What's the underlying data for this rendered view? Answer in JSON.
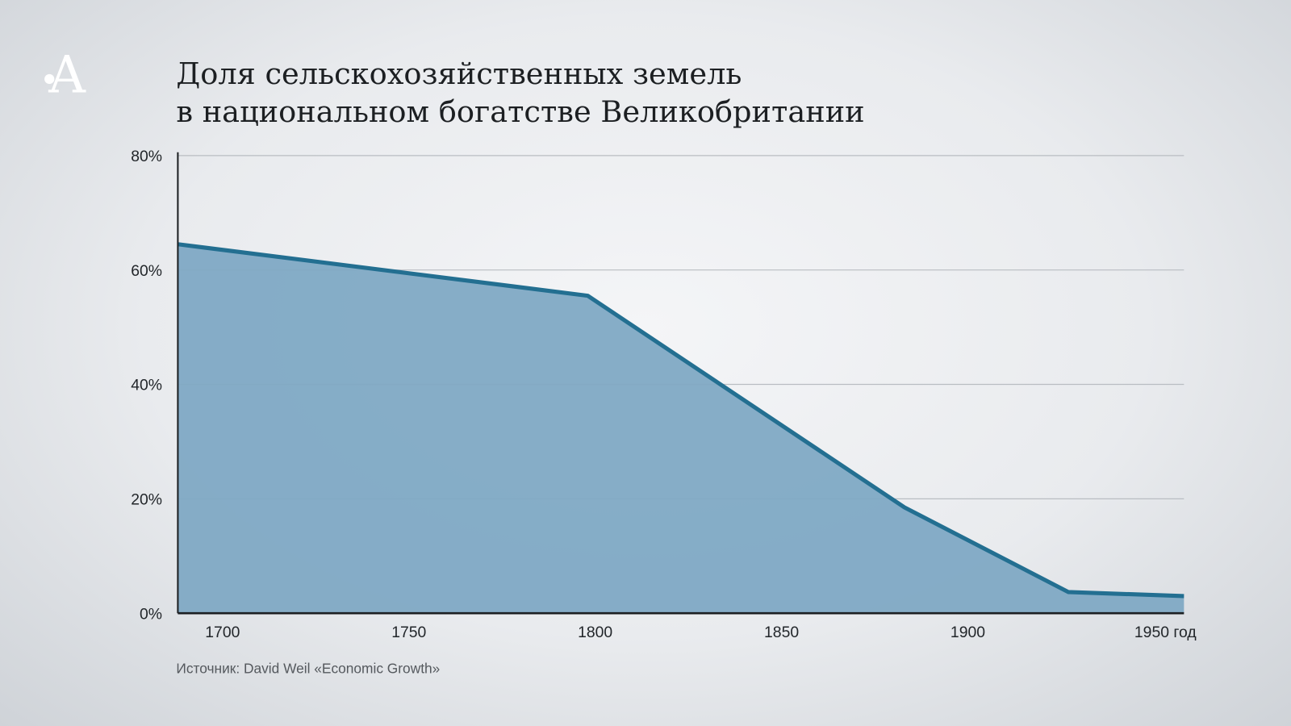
{
  "logo": "А",
  "chart_data": {
    "type": "area",
    "title": [
      "Доля сельскохозяйственных земель",
      "в национальном богатстве Великобритании"
    ],
    "xlabel": "год",
    "ylabel": "",
    "x": [
      1688,
      1798,
      1883,
      1927,
      1958
    ],
    "values": [
      64.5,
      55.5,
      18.5,
      3.7,
      3.0
    ],
    "xlim": [
      1688,
      1958
    ],
    "ylim": [
      0,
      80
    ],
    "x_ticks": [
      1700,
      1750,
      1800,
      1850,
      1900,
      1950
    ],
    "x_tick_labels": [
      "1700",
      "1750",
      "1800",
      "1850",
      "1900",
      "1950 год"
    ],
    "y_ticks": [
      0,
      20,
      40,
      60,
      80
    ],
    "y_tick_labels": [
      "0%",
      "20%",
      "40%",
      "60%",
      "80%"
    ],
    "grid": true,
    "source": "Источник: David Weil «Economic Growth»",
    "colors": {
      "fill": "#7fa9c4",
      "line": "#236f91"
    }
  }
}
